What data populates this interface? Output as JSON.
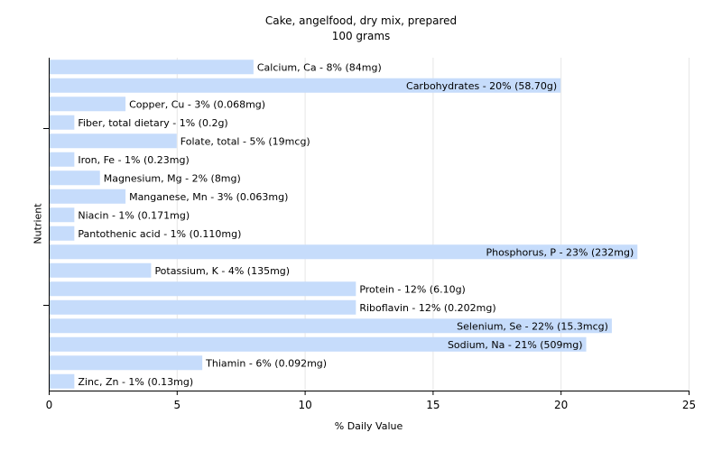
{
  "chart_data": {
    "type": "bar",
    "orientation": "horizontal",
    "title": "Cake, angelfood, dry mix, prepared",
    "subtitle": "100 grams",
    "xlabel": "% Daily Value",
    "ylabel": "Nutrient",
    "xlim": [
      0,
      25
    ],
    "xticks": [
      "0",
      "5",
      "10",
      "15",
      "20",
      "25"
    ],
    "grid": "vertical",
    "colors": {
      "bar": "#c6dcfb",
      "grid": "#e6e6e6",
      "axis": "#000000",
      "text": "#000000"
    },
    "bars": [
      {
        "value": 8,
        "label": "Calcium, Ca - 8% (84mg)"
      },
      {
        "value": 20,
        "label": "Carbohydrates - 20% (58.70g)"
      },
      {
        "value": 3,
        "label": "Copper, Cu - 3% (0.068mg)"
      },
      {
        "value": 1,
        "label": "Fiber, total dietary - 1% (0.2g)"
      },
      {
        "value": 5,
        "label": "Folate, total - 5% (19mcg)"
      },
      {
        "value": 1,
        "label": "Iron, Fe - 1% (0.23mg)"
      },
      {
        "value": 2,
        "label": "Magnesium, Mg - 2% (8mg)"
      },
      {
        "value": 3,
        "label": "Manganese, Mn - 3% (0.063mg)"
      },
      {
        "value": 1,
        "label": "Niacin - 1% (0.171mg)"
      },
      {
        "value": 1,
        "label": "Pantothenic acid - 1% (0.110mg)"
      },
      {
        "value": 23,
        "label": "Phosphorus, P - 23% (232mg)"
      },
      {
        "value": 4,
        "label": "Potassium, K - 4% (135mg)"
      },
      {
        "value": 12,
        "label": "Protein - 12% (6.10g)"
      },
      {
        "value": 12,
        "label": "Riboflavin - 12% (0.202mg)"
      },
      {
        "value": 22,
        "label": "Selenium, Se - 22% (15.3mcg)"
      },
      {
        "value": 21,
        "label": "Sodium, Na - 21% (509mg)"
      },
      {
        "value": 6,
        "label": "Thiamin - 6% (0.092mg)"
      },
      {
        "value": 1,
        "label": "Zinc, Zn - 1% (0.13mg)"
      }
    ]
  }
}
